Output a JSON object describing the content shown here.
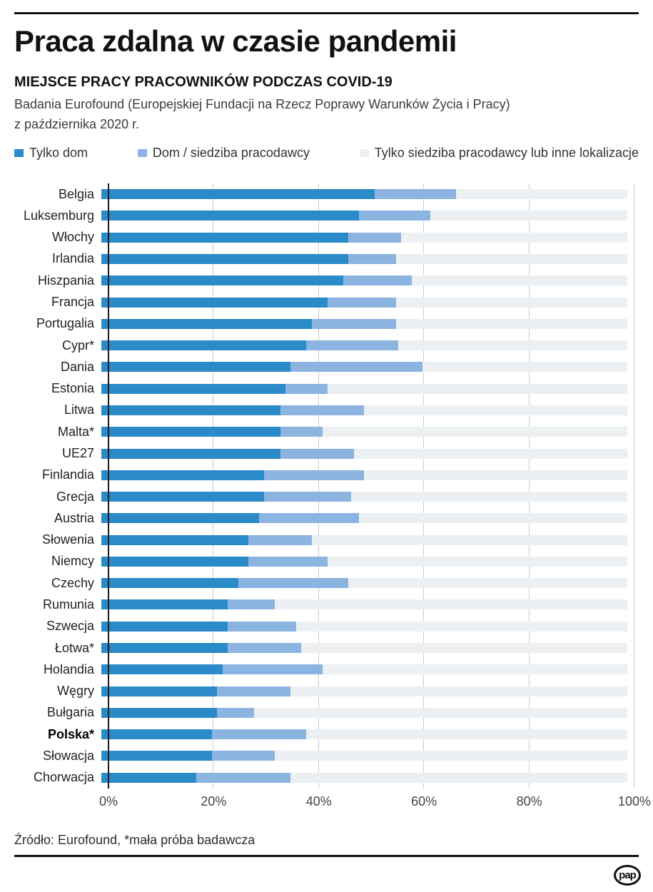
{
  "header": {
    "title": "Praca zdalna w czasie pandemii",
    "subtitle": "MIEJSCE PRACY PRACOWNIKÓW PODCZAS COVID-19",
    "description_line1": "Badania Eurofound (Europejskiej Fundacji na Rzecz Poprawy Warunków Życia i Pracy)",
    "description_line2": "z października 2020 r."
  },
  "legend": [
    {
      "label": "Tylko dom",
      "color": "#2b8ac8"
    },
    {
      "label": "Dom / siedziba pracodawcy",
      "color": "#8bb4e0"
    },
    {
      "label": "Tylko siedziba pracodawcy lub inne lokalizacje",
      "color": "#ecf0f2"
    }
  ],
  "colors": {
    "home": "#2b8ac8",
    "mixed": "#8bb4e0",
    "rest": "#ecf0f2",
    "gridline": "#cbcbcb",
    "axis": "#1a1a1a"
  },
  "chart_data": {
    "type": "bar",
    "orientation": "horizontal",
    "stacked": true,
    "unit": "%",
    "xlim": [
      0,
      100
    ],
    "x_ticks": [
      "0%",
      "20%",
      "40%",
      "60%",
      "80%",
      "100%"
    ],
    "series_names": [
      "Tylko dom",
      "Dom / siedziba pracodawcy",
      "Tylko siedziba pracodawcy lub inne lokalizacje"
    ],
    "rows": [
      {
        "label": "Belgia",
        "bold": false,
        "home": 52,
        "mixed": 15.5,
        "rest": 32.5
      },
      {
        "label": "Luksemburg",
        "bold": false,
        "home": 49,
        "mixed": 13.5,
        "rest": 37.5
      },
      {
        "label": "Włochy",
        "bold": false,
        "home": 47,
        "mixed": 10,
        "rest": 43
      },
      {
        "label": "Irlandia",
        "bold": false,
        "home": 47,
        "mixed": 9,
        "rest": 44
      },
      {
        "label": "Hiszpania",
        "bold": false,
        "home": 46,
        "mixed": 13,
        "rest": 41
      },
      {
        "label": "Francja",
        "bold": false,
        "home": 43,
        "mixed": 13,
        "rest": 44
      },
      {
        "label": "Portugalia",
        "bold": false,
        "home": 40,
        "mixed": 16,
        "rest": 44
      },
      {
        "label": "Cypr*",
        "bold": false,
        "home": 39,
        "mixed": 17.5,
        "rest": 43.5
      },
      {
        "label": "Dania",
        "bold": false,
        "home": 36,
        "mixed": 25,
        "rest": 39
      },
      {
        "label": "Estonia",
        "bold": false,
        "home": 35,
        "mixed": 8,
        "rest": 57
      },
      {
        "label": "Litwa",
        "bold": false,
        "home": 34,
        "mixed": 16,
        "rest": 50
      },
      {
        "label": "Malta*",
        "bold": false,
        "home": 34,
        "mixed": 8,
        "rest": 58
      },
      {
        "label": "UE27",
        "bold": false,
        "home": 34,
        "mixed": 14,
        "rest": 52
      },
      {
        "label": "Finlandia",
        "bold": false,
        "home": 31,
        "mixed": 19,
        "rest": 50
      },
      {
        "label": "Grecja",
        "bold": false,
        "home": 31,
        "mixed": 16.5,
        "rest": 52.5
      },
      {
        "label": "Austria",
        "bold": false,
        "home": 30,
        "mixed": 19,
        "rest": 51
      },
      {
        "label": "Słowenia",
        "bold": false,
        "home": 28,
        "mixed": 12,
        "rest": 60
      },
      {
        "label": "Niemcy",
        "bold": false,
        "home": 28,
        "mixed": 15,
        "rest": 57
      },
      {
        "label": "Czechy",
        "bold": false,
        "home": 26,
        "mixed": 21,
        "rest": 53
      },
      {
        "label": "Rumunia",
        "bold": false,
        "home": 24,
        "mixed": 9,
        "rest": 67
      },
      {
        "label": "Szwecja",
        "bold": false,
        "home": 24,
        "mixed": 13,
        "rest": 63
      },
      {
        "label": "Łotwa*",
        "bold": false,
        "home": 24,
        "mixed": 14,
        "rest": 62
      },
      {
        "label": "Holandia",
        "bold": false,
        "home": 23,
        "mixed": 19,
        "rest": 58
      },
      {
        "label": "Węgry",
        "bold": false,
        "home": 22,
        "mixed": 14,
        "rest": 64
      },
      {
        "label": "Bułgaria",
        "bold": false,
        "home": 22,
        "mixed": 7,
        "rest": 71
      },
      {
        "label": "Polska*",
        "bold": true,
        "home": 21,
        "mixed": 18,
        "rest": 61
      },
      {
        "label": "Słowacja",
        "bold": false,
        "home": 21,
        "mixed": 12,
        "rest": 67
      },
      {
        "label": "Chorwacja",
        "bold": false,
        "home": 18,
        "mixed": 18,
        "rest": 64
      }
    ]
  },
  "footer": {
    "source": "Źródło: Eurofound, *mała próba badawcza",
    "logo": "pap"
  }
}
